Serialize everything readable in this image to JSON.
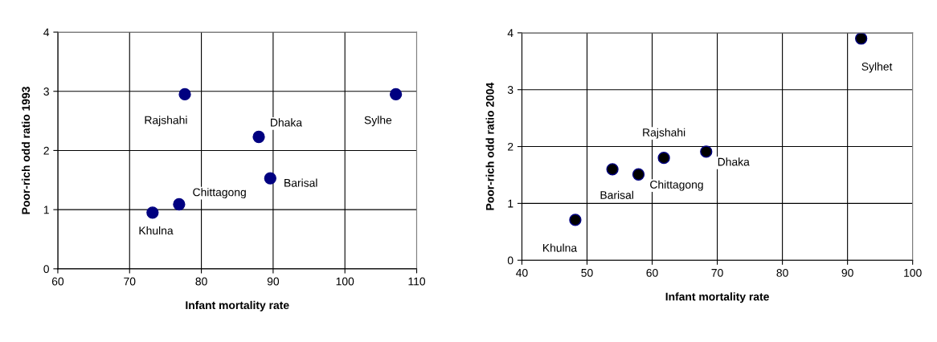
{
  "chart_data": [
    {
      "type": "scatter",
      "xlabel": "Infant mortality rate",
      "ylabel": "Poor-rich odd ratio 1993",
      "x": [
        73.2,
        76.9,
        77.7,
        88.0,
        89.6,
        107.1
      ],
      "series": [
        {
          "color": "#000080",
          "values": [
            0.95,
            1.09,
            2.95,
            2.23,
            1.53,
            2.95
          ]
        }
      ],
      "annotations": [
        {
          "text": "Khulna",
          "x": 73.2,
          "y": 0.95
        },
        {
          "text": "Chittagong",
          "x": 76.9,
          "y": 1.09
        },
        {
          "text": "Rajshahi",
          "x": 77.7,
          "y": 2.95
        },
        {
          "text": "Dhaka",
          "x": 88.0,
          "y": 2.23
        },
        {
          "text": "Barisal",
          "x": 89.6,
          "y": 1.53
        },
        {
          "text": "Sylhe",
          "x": 107.1,
          "y": 2.95
        }
      ],
      "xlim": [
        60,
        110
      ],
      "xticks": [
        60,
        70,
        80,
        90,
        100,
        110
      ],
      "ylim": [
        0,
        4
      ],
      "yticks": [
        0,
        1,
        2,
        3,
        4
      ],
      "grid": true,
      "marker": "circle"
    },
    {
      "type": "scatter",
      "xlabel": "Infant mortality rate",
      "ylabel": "Poor-rich odd ratio 2004",
      "x": [
        48.2,
        53.9,
        57.9,
        61.8,
        68.3,
        92.1
      ],
      "series": [
        {
          "color": "#000000",
          "values": [
            0.71,
            1.6,
            1.51,
            1.8,
            1.91,
            3.9
          ]
        }
      ],
      "annotations": [
        {
          "text": "Khulna",
          "x": 48.2,
          "y": 0.71
        },
        {
          "text": "Barisal",
          "x": 53.9,
          "y": 1.6
        },
        {
          "text": "Chittagong",
          "x": 57.9,
          "y": 1.51
        },
        {
          "text": "Rajshahi",
          "x": 61.8,
          "y": 1.8
        },
        {
          "text": "Dhaka",
          "x": 68.3,
          "y": 1.91
        },
        {
          "text": "Sylhet",
          "x": 92.1,
          "y": 3.9
        }
      ],
      "xlim": [
        40,
        100
      ],
      "xticks": [
        40,
        50,
        60,
        70,
        80,
        90,
        100
      ],
      "ylim": [
        0,
        4
      ],
      "yticks": [
        0,
        1,
        2,
        3,
        4
      ],
      "grid": true,
      "marker": "circle"
    }
  ]
}
